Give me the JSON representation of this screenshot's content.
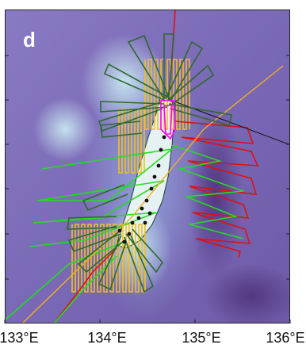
{
  "panel_label": "d",
  "x_axis": {
    "ticks": [
      {
        "value": 133,
        "label": "133°E"
      },
      {
        "value": 134,
        "label": "134°E"
      },
      {
        "value": 135,
        "label": "135°E"
      },
      {
        "value": 136,
        "label": "136°E"
      }
    ]
  },
  "colors": {
    "bathymetry_deep": "#6a4f9a",
    "bathymetry_shallow": "#c8e8ee",
    "plateau_fill": "#eaf3f4",
    "search_area_box": "#2d6a2d",
    "track_yellow": "#f0c020",
    "track_green": "#22dd22",
    "track_red": "#e01010",
    "track_magenta": "#ff00ff",
    "track_black": "#111111"
  }
}
